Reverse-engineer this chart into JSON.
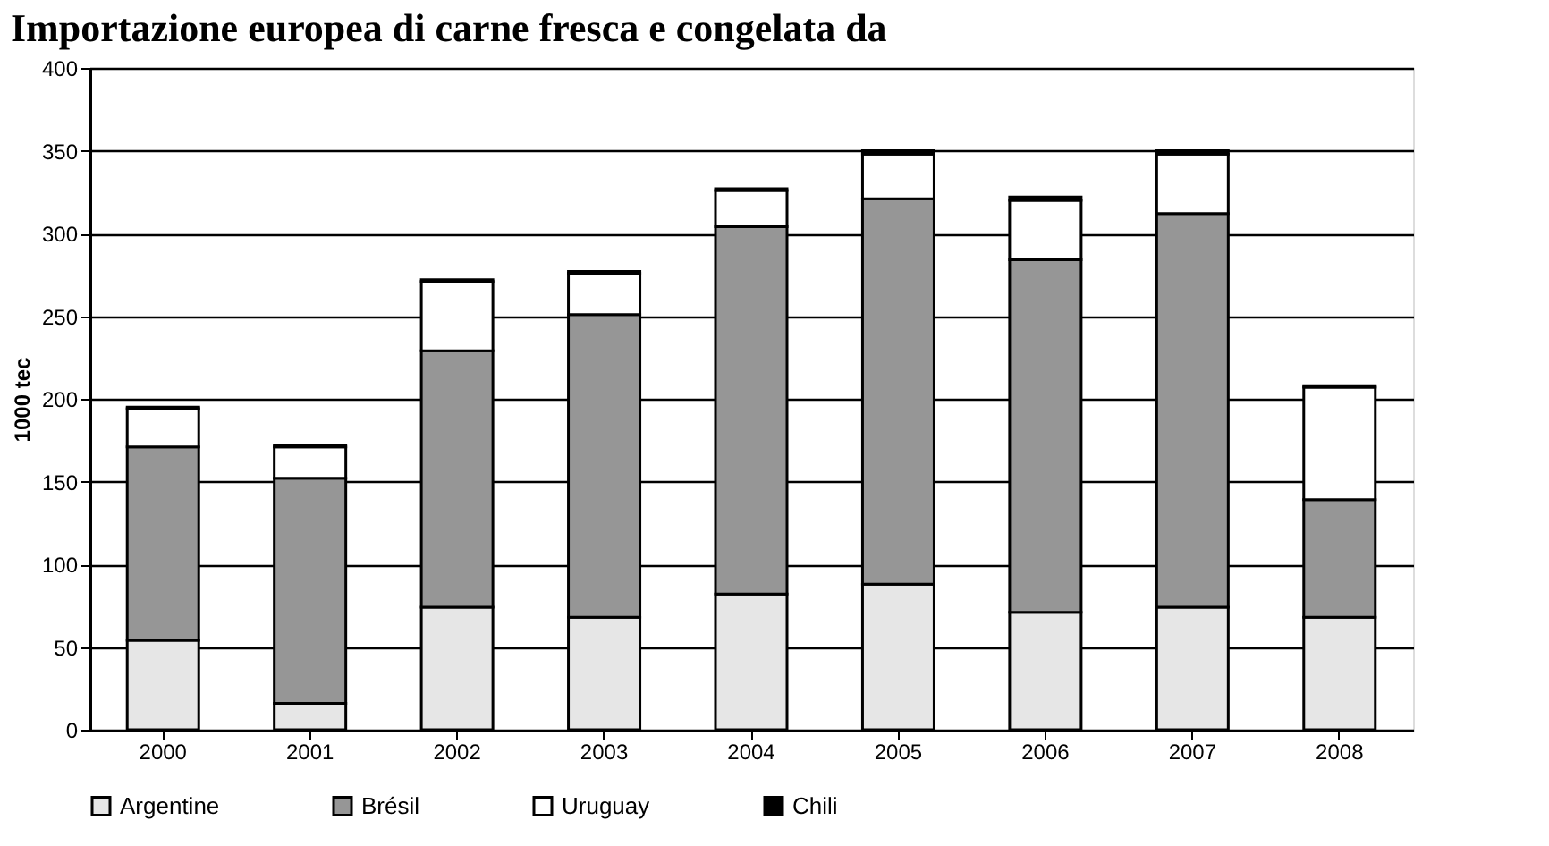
{
  "chart_data": {
    "type": "bar",
    "title": "Importazione europea di carne fresca e congelata da",
    "ylabel": "1000 tec",
    "stacked": true,
    "categories": [
      "2000",
      "2001",
      "2002",
      "2003",
      "2004",
      "2005",
      "2006",
      "2007",
      "2008"
    ],
    "series": [
      {
        "name": "Argentine",
        "color": "#e6e6e6",
        "values": [
          54,
          16,
          74,
          68,
          82,
          88,
          71,
          74,
          68
        ]
      },
      {
        "name": "Brésil",
        "color": "#969696",
        "values": [
          117,
          136,
          155,
          183,
          222,
          233,
          213,
          238,
          71
        ]
      },
      {
        "name": "Uruguay",
        "color": "#ffffff",
        "values": [
          23,
          19,
          42,
          25,
          22,
          27,
          36,
          36,
          68
        ]
      },
      {
        "name": "Chili",
        "color": "#000000",
        "values": [
          1,
          1,
          1,
          1,
          1,
          2,
          2,
          2,
          1
        ]
      }
    ],
    "ylim": [
      0,
      400
    ],
    "yticks": [
      0,
      50,
      100,
      150,
      200,
      250,
      300,
      350,
      400
    ],
    "grid": "y",
    "legend": "bottom"
  }
}
